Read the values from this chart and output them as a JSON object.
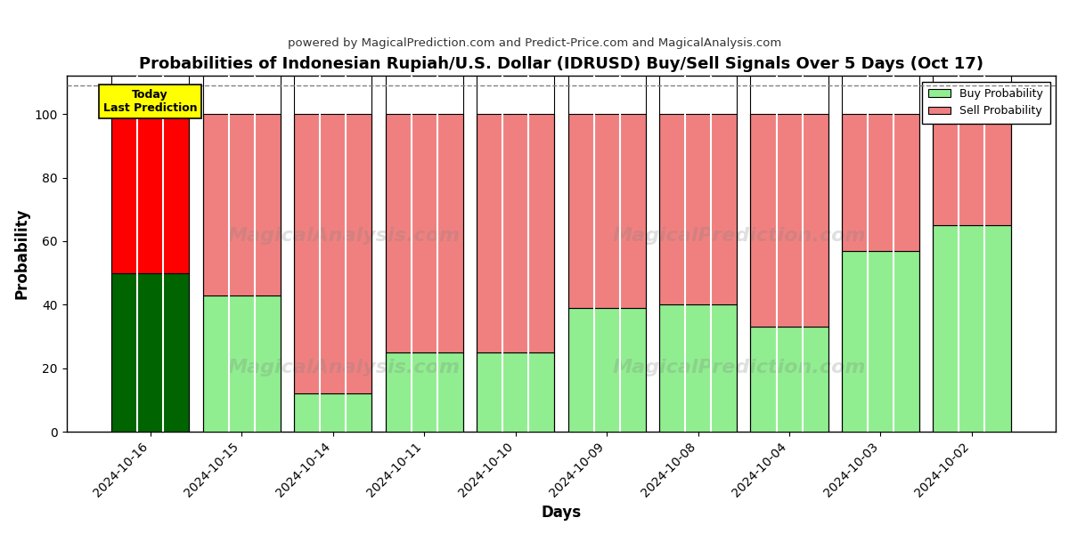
{
  "title": "Probabilities of Indonesian Rupiah/U.S. Dollar (IDRUSD) Buy/Sell Signals Over 5 Days (Oct 17)",
  "subtitle": "powered by MagicalPrediction.com and Predict-Price.com and MagicalAnalysis.com",
  "xlabel": "Days",
  "ylabel": "Probability",
  "categories": [
    "2024-10-16",
    "2024-10-15",
    "2024-10-14",
    "2024-10-11",
    "2024-10-10",
    "2024-10-09",
    "2024-10-08",
    "2024-10-04",
    "2024-10-03",
    "2024-10-02"
  ],
  "buy_values": [
    50,
    43,
    12,
    25,
    25,
    39,
    40,
    33,
    57,
    65
  ],
  "sell_values": [
    50,
    57,
    88,
    75,
    75,
    61,
    60,
    67,
    43,
    35
  ],
  "buy_color_today": "#006400",
  "sell_color_today": "#ff0000",
  "buy_color_normal": "#90EE90",
  "sell_color_normal": "#F08080",
  "bar_edge_color": "#000000",
  "today_label_bg": "#ffff00",
  "today_label_text": "Today\nLast Prediction",
  "legend_buy": "Buy Probability",
  "legend_sell": "Sell Probability",
  "ylim": [
    0,
    112
  ],
  "yticks": [
    0,
    20,
    40,
    60,
    80,
    100
  ],
  "watermark_lines": [
    "MagicalAnalysis.com",
    "MagicalPrediction.com"
  ],
  "background_color": "#ffffff",
  "grid_color": "#aaaaaa",
  "plot_bg_color": "#ffffff",
  "dashed_line_y": 109,
  "bar_width": 0.85
}
